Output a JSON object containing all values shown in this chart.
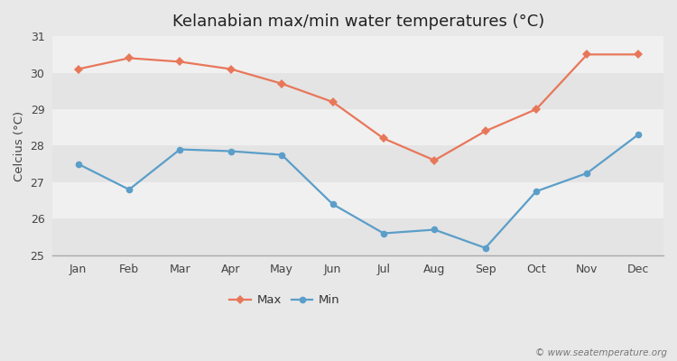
{
  "title": "Kelanabian max/min water temperatures (°C)",
  "ylabel": "Celcius (°C)",
  "months": [
    "Jan",
    "Feb",
    "Mar",
    "Apr",
    "May",
    "Jun",
    "Jul",
    "Aug",
    "Sep",
    "Oct",
    "Nov",
    "Dec"
  ],
  "max_values": [
    30.1,
    30.4,
    30.3,
    30.1,
    29.7,
    29.2,
    28.2,
    27.6,
    28.4,
    29.0,
    30.5,
    30.5
  ],
  "min_values": [
    27.5,
    26.8,
    27.9,
    27.85,
    27.75,
    26.4,
    25.6,
    25.7,
    25.2,
    26.75,
    27.25,
    28.3
  ],
  "max_color": "#e8775a",
  "min_color": "#5b9ec9",
  "background_color": "#e8e8e8",
  "plot_bg_color": "#f0f0f0",
  "band_color_light": "#f0f0f0",
  "band_color_dark": "#e4e4e4",
  "ylim": [
    25,
    31
  ],
  "yticks": [
    25,
    26,
    27,
    28,
    29,
    30,
    31
  ],
  "watermark": "© www.seatemperature.org",
  "legend_max": "Max",
  "legend_min": "Min",
  "title_fontsize": 13,
  "label_fontsize": 9.5,
  "tick_fontsize": 9,
  "watermark_fontsize": 7.5
}
